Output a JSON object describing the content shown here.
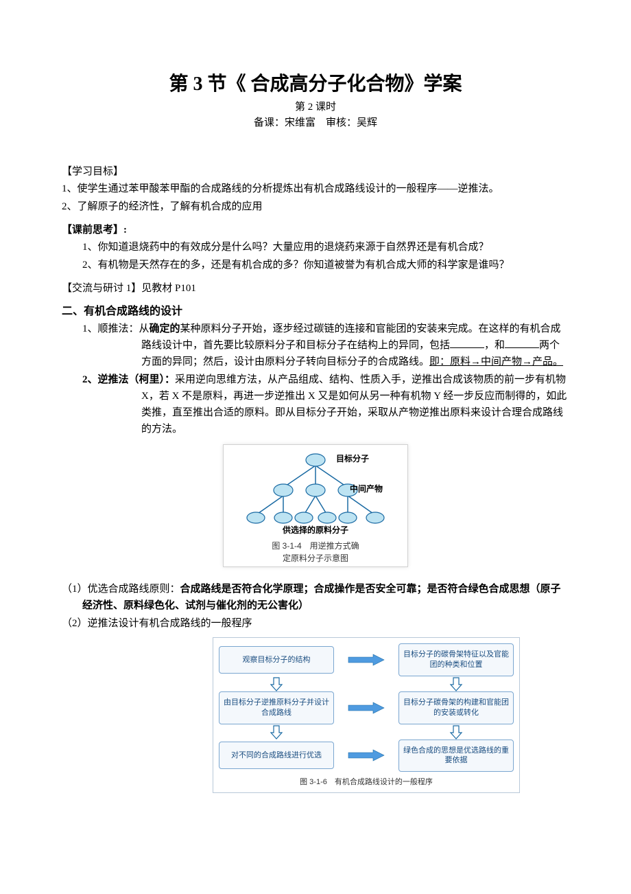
{
  "title": "第 3 节《 合成高分子化合物》学案",
  "subtitle": "第 2 课时",
  "authors": "备课：宋维富　审核：吴辉",
  "sec_objectives_head": "【学习目标】",
  "objective1": "1、使学生通过苯甲酸苯甲酯的合成路线的分析提炼出有机合成路线设计的一般程序——逆推法。",
  "objective1b": "",
  "objective2": "2、了解原子的经济性，了解有机合成的应用",
  "sec_prethink_head": "【课前思考】:",
  "prethink1": "1、你知道退烧药中的有效成分是什么吗？大量应用的退烧药来源于自然界还是有机合成？",
  "prethink2": "2、有机物是天然存在的多，还是有机合成的多？你知道被誉为有机合成大师的科学家是谁吗？",
  "sec_discuss_head": "【交流与研讨 1】见教材 P101",
  "sec2_head": "二、有机合成路线的设计",
  "method1_label": "1、顺推法：从",
  "method1_bold": "确定的",
  "method1_tail": "某种原料分子开始，逐步经过碳链的连接和官能团的安装来完成。在这样的有机合成路线设计中，首先要比较原料分子和目标分子在结构上的异同，包括",
  "method1_blanks_mid": "和",
  "method1_after_blanks": "两个方面的异同；然后，设计由原料分子转向目标分子的合成路线。",
  "method1_underline": "即：原料→中间产物→产品。",
  "method2_label": "2、逆推法（柯里）：",
  "method2_body": "采用逆向思维方法，从产品组成、结构、性质入手，逆推出合成该物质的前一步有机物 X，若 X 不是原料，再进一步逆推出 X 又是如何从另一种有机物 Y 经一步反应而制得的，如此类推，直至推出合适的原料。即从目标分子开始，采取从产物逆推出原料来设计合理合成路线的方法。",
  "tree": {
    "top_label": "目标分子",
    "mid_label": "中间产物",
    "bottom_label": "供选择的原料分子",
    "caption1": "图 3-1-4　用逆推方式确",
    "caption2": "定原料分子示意图",
    "node_fill": "#bde3f2",
    "node_stroke": "#1a6aa3",
    "line_color": "#1a6aa3"
  },
  "para_1_label": "（1）优选合成路线原则：",
  "para_1_body": "合成路线是否符合化学原理；合成操作是否安全可靠；是否符合绿色合成思想（原子经济性、原料绿色化、试剂与催化剂的无公害化）",
  "para_2": "（2）逆推法设计有机合成路线的一般程序",
  "flow": {
    "b1": "观察目标分子的结构",
    "b2": "目标分子的碳骨架特征以及官能团的种类和位置",
    "b3": "由目标分子逆推原料分子并设计合成路线",
    "b4": "目标分子碳骨架的构建和官能团的安装或转化",
    "b5": "对不同的合成路线进行优选",
    "b6": "绿色合成的思想是优选路线的重要依据",
    "caption": "图 3-1-6　有机合成路线设计的一般程序",
    "box_border": "#7aa6d0",
    "box_bg": "#f4f8fc",
    "text_color": "#1a4d80",
    "arrow_fill": "#4f9be0",
    "arrow_stroke": "#1a6aa3",
    "outline_fill": "#ffffff"
  }
}
